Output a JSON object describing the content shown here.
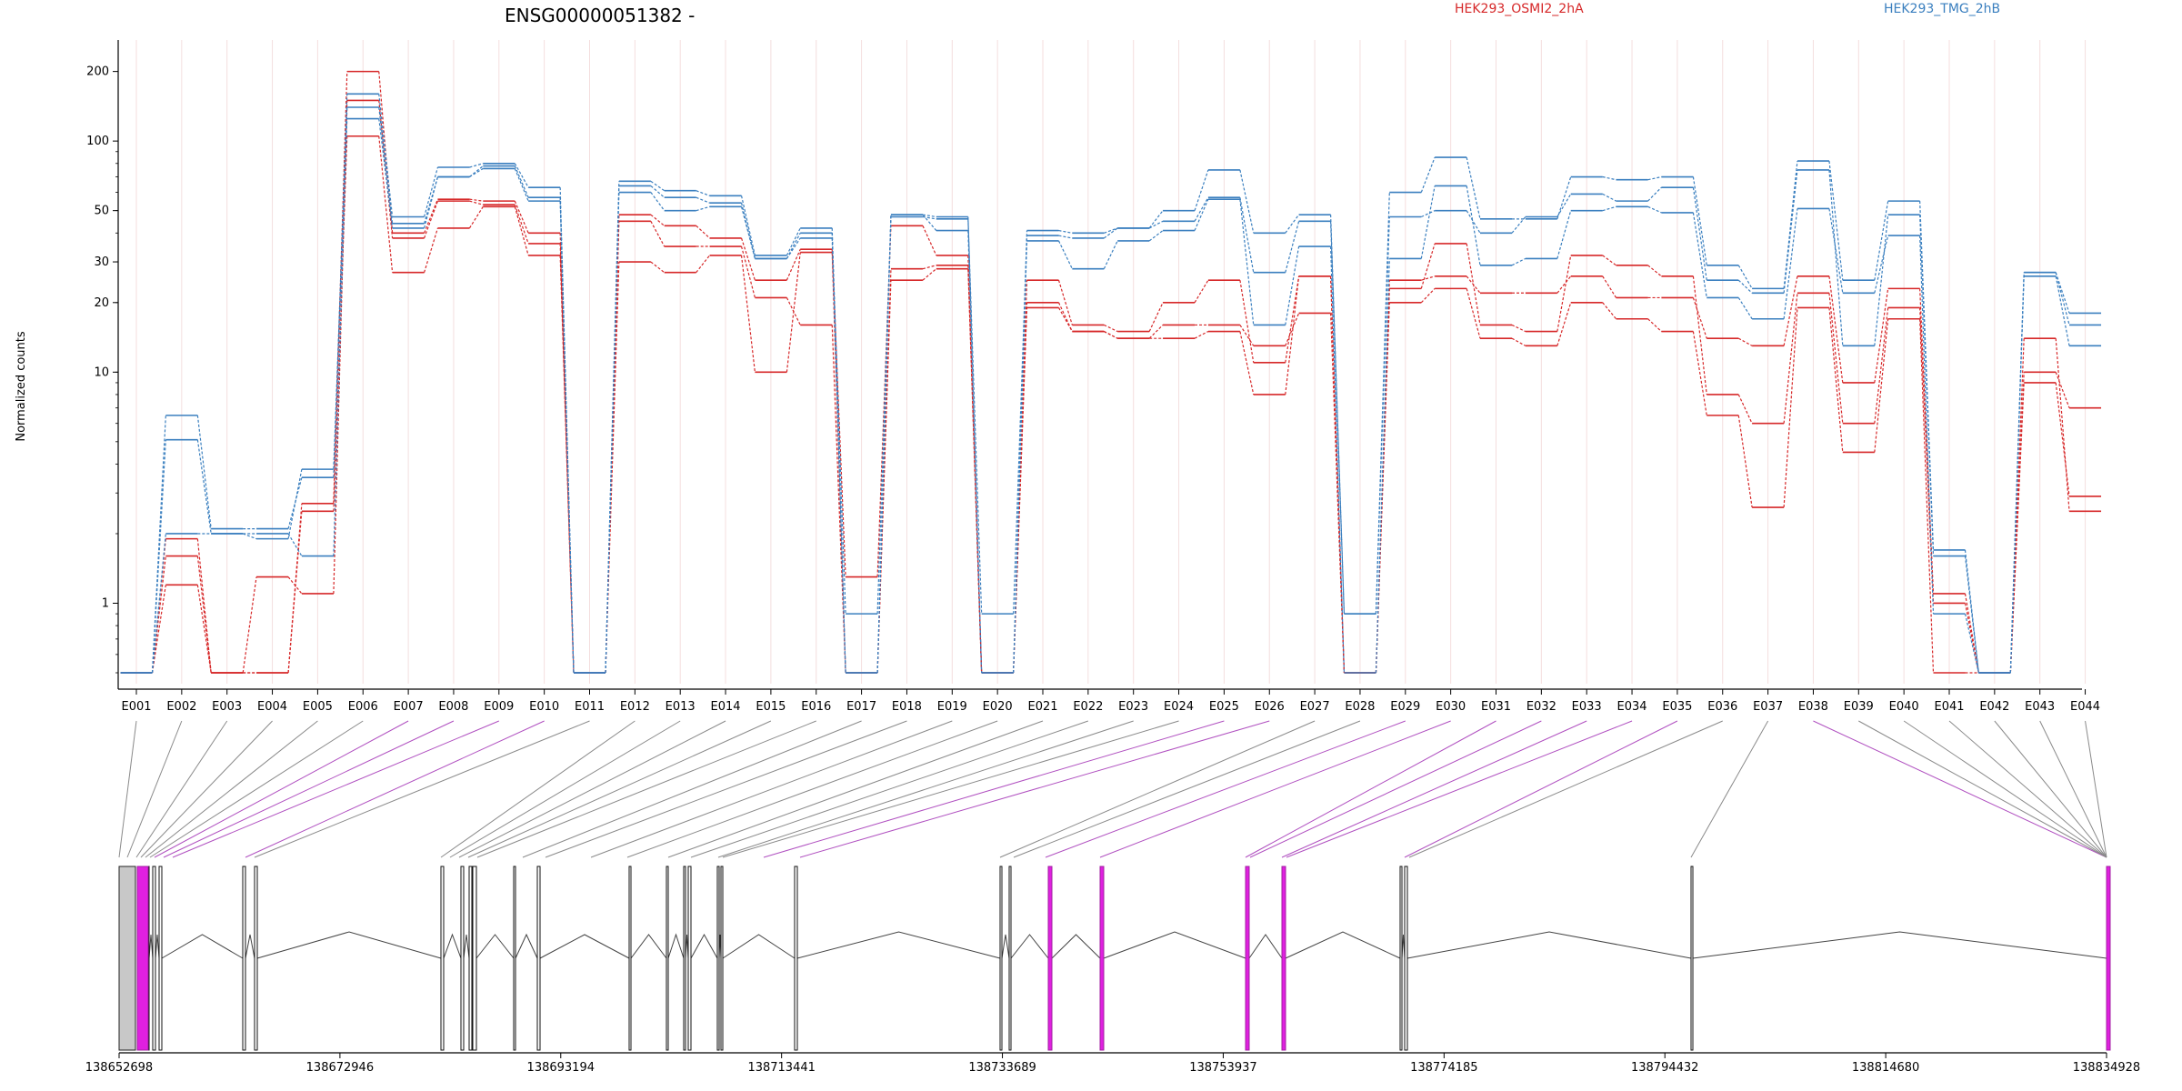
{
  "chart_data": {
    "type": "line",
    "title": "ENSG00000051382 -",
    "ylabel": "Normalized counts",
    "yscale": "log",
    "ylim": [
      0.5,
      250
    ],
    "yticks": [
      1,
      10,
      20,
      30,
      50,
      100,
      200
    ],
    "categories": [
      "E001",
      "E002",
      "E003",
      "E004",
      "E005",
      "E006",
      "E007",
      "E008",
      "E009",
      "E010",
      "E011",
      "E012",
      "E013",
      "E014",
      "E015",
      "E016",
      "E017",
      "E018",
      "E019",
      "E020",
      "E021",
      "E022",
      "E023",
      "E024",
      "E025",
      "E026",
      "E027",
      "E028",
      "E029",
      "E030",
      "E031",
      "E032",
      "E033",
      "E034",
      "E035",
      "E036",
      "E037",
      "E038",
      "E039",
      "E040",
      "E041",
      "E042",
      "E043",
      "E044"
    ],
    "legend": [
      {
        "name": "HEK293_OSMI2_2hA",
        "color": "#d62728"
      },
      {
        "name": "HEK293_TMG_2hB",
        "color": "#3a7fbf"
      }
    ],
    "series": [
      {
        "group": "HEK293_OSMI2_2hA",
        "values": [
          0.5,
          1.9,
          0.5,
          0.5,
          2.7,
          200,
          40,
          56,
          55,
          40,
          0.5,
          48,
          43,
          38,
          25,
          34,
          1.3,
          43,
          32,
          0.5,
          25,
          16,
          15,
          20,
          25,
          11,
          26,
          0.5,
          25,
          26,
          22,
          22,
          26,
          21,
          21,
          14,
          13,
          26,
          9,
          23,
          1.1,
          0.5,
          10,
          7
        ]
      },
      {
        "group": "HEK293_OSMI2_2hA",
        "values": [
          0.5,
          1.2,
          0.5,
          1.3,
          1.1,
          150,
          38,
          55,
          53,
          36,
          0.5,
          45,
          35,
          35,
          21,
          16,
          0.5,
          28,
          29,
          0.5,
          20,
          15,
          14,
          16,
          16,
          13,
          18,
          0.5,
          23,
          36,
          16,
          15,
          32,
          29,
          26,
          8,
          6,
          22,
          6,
          19,
          1.0,
          0.5,
          14,
          2.5
        ]
      },
      {
        "group": "HEK293_OSMI2_2hA",
        "values": [
          0.5,
          1.6,
          0.5,
          0.5,
          2.5,
          105,
          27,
          42,
          52,
          32,
          0.5,
          30,
          27,
          32,
          10,
          33,
          0.5,
          25,
          28,
          0.5,
          19,
          15,
          14,
          14,
          15,
          8,
          26,
          0.5,
          20,
          23,
          14,
          13,
          20,
          17,
          15,
          6.5,
          2.6,
          19,
          4.5,
          17,
          0.5,
          0.5,
          9,
          2.9
        ]
      },
      {
        "group": "HEK293_TMG_2hB",
        "values": [
          0.5,
          6.5,
          2.1,
          2.1,
          3.5,
          160,
          47,
          77,
          80,
          63,
          0.5,
          67,
          61,
          58,
          32,
          42,
          0.5,
          48,
          47,
          0.5,
          41,
          40,
          42,
          50,
          75,
          40,
          48,
          0.9,
          60,
          85,
          46,
          46,
          70,
          68,
          70,
          29,
          23,
          82,
          25,
          55,
          1.7,
          0.5,
          27,
          18
        ]
      },
      {
        "group": "HEK293_TMG_2hB",
        "values": [
          0.5,
          5.1,
          2.0,
          2.0,
          1.6,
          140,
          44,
          70,
          78,
          57,
          0.5,
          64,
          57,
          54,
          31,
          40,
          0.9,
          47,
          46,
          0.9,
          39,
          38,
          42,
          45,
          57,
          27,
          45,
          0.9,
          47,
          50,
          40,
          47,
          59,
          55,
          63,
          25,
          22,
          75,
          13,
          48,
          1.6,
          0.5,
          27,
          16
        ]
      },
      {
        "group": "HEK293_TMG_2hB",
        "values": [
          0.5,
          2.0,
          2.0,
          1.9,
          3.8,
          125,
          42,
          70,
          76,
          55,
          0.5,
          60,
          50,
          52,
          31,
          38,
          0.5,
          48,
          41,
          0.5,
          37,
          28,
          37,
          41,
          56,
          16,
          35,
          0.5,
          31,
          64,
          29,
          31,
          50,
          52,
          49,
          21,
          17,
          51,
          22,
          39,
          0.9,
          0.5,
          26,
          13
        ]
      }
    ],
    "genome_axis": {
      "tick_labels": [
        "138652698",
        "138672946",
        "138693194",
        "138713441",
        "138733689",
        "138753937",
        "138774185",
        "138794432",
        "138814680",
        "138834928"
      ]
    }
  }
}
